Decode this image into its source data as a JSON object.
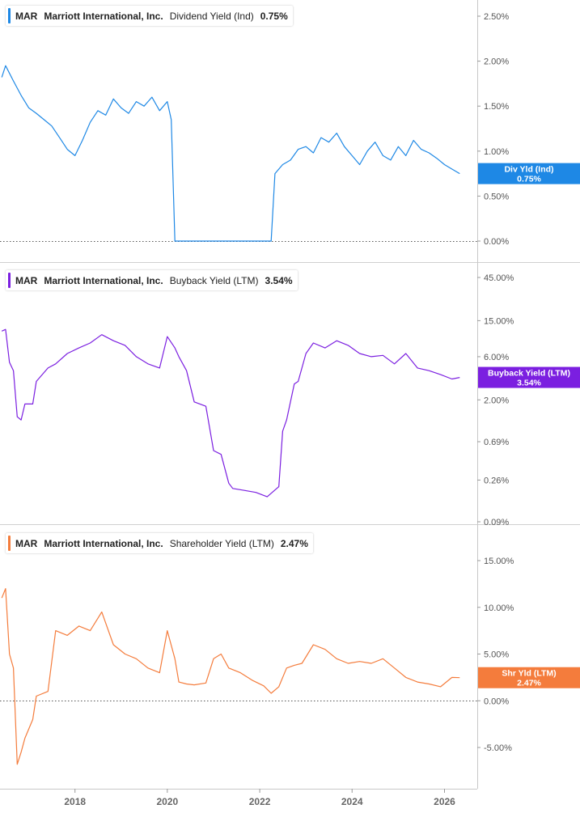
{
  "ticker": "MAR",
  "company": "Marriott International, Inc.",
  "x_ticks": [
    "2018",
    "2020",
    "2022",
    "2024",
    "2026"
  ],
  "chart_data": [
    {
      "type": "line",
      "metric": "Dividend Yield (Ind)",
      "current_value": "0.75%",
      "badge_label": "Div Yld (Ind)",
      "color": "#1e88e5",
      "scale": "linear",
      "ylim": [
        0,
        2.6
      ],
      "y_ticks": [
        {
          "v": 2.5,
          "t": "2.50%"
        },
        {
          "v": 2.0,
          "t": "2.00%"
        },
        {
          "v": 1.5,
          "t": "1.50%"
        },
        {
          "v": 1.0,
          "t": "1.00%"
        },
        {
          "v": 0.5,
          "t": "0.50%"
        },
        {
          "v": 0,
          "t": "0.00%"
        }
      ],
      "zero_line": 0,
      "x": [
        "2016-06",
        "2016-07",
        "2016-09",
        "2016-11",
        "2017-01",
        "2017-03",
        "2017-05",
        "2017-07",
        "2017-09",
        "2017-11",
        "2018-01",
        "2018-03",
        "2018-05",
        "2018-07",
        "2018-09",
        "2018-11",
        "2019-01",
        "2019-03",
        "2019-05",
        "2019-07",
        "2019-09",
        "2019-11",
        "2020-01",
        "2020-02",
        "2020-03",
        "2020-06",
        "2021-01",
        "2022-04",
        "2022-05",
        "2022-07",
        "2022-09",
        "2022-11",
        "2023-01",
        "2023-03",
        "2023-05",
        "2023-07",
        "2023-09",
        "2023-11",
        "2024-01",
        "2024-03",
        "2024-05",
        "2024-07",
        "2024-09",
        "2024-11",
        "2025-01",
        "2025-03",
        "2025-05",
        "2025-07",
        "2025-09",
        "2025-11",
        "2026-01",
        "2026-03",
        "2026-05"
      ],
      "y": [
        1.82,
        1.95,
        1.78,
        1.62,
        1.48,
        1.42,
        1.35,
        1.28,
        1.15,
        1.02,
        0.95,
        1.12,
        1.32,
        1.45,
        1.4,
        1.58,
        1.48,
        1.42,
        1.55,
        1.5,
        1.6,
        1.45,
        1.55,
        1.35,
        0,
        0,
        0,
        0,
        0.75,
        0.85,
        0.9,
        1.02,
        1.05,
        0.98,
        1.15,
        1.1,
        1.2,
        1.05,
        0.95,
        0.85,
        1.0,
        1.1,
        0.95,
        0.9,
        1.05,
        0.95,
        1.12,
        1.02,
        0.98,
        0.92,
        0.85,
        0.8,
        0.75
      ]
    },
    {
      "type": "line",
      "metric": "Buyback Yield (LTM)",
      "current_value": "3.54%",
      "badge_label": "Buyback Yield (LTM)",
      "color": "#7b1fe0",
      "scale": "log",
      "ylim": [
        0.085,
        55
      ],
      "y_ticks": [
        {
          "v": 45,
          "t": "45.00%"
        },
        {
          "v": 15,
          "t": "15.00%"
        },
        {
          "v": 6,
          "t": "6.00%"
        },
        {
          "v": 2,
          "t": "2.00%"
        },
        {
          "v": 0.69,
          "t": "0.69%"
        },
        {
          "v": 0.26,
          "t": "0.26%"
        },
        {
          "v": 0.09,
          "t": "0.09%"
        }
      ],
      "x": [
        "2016-06",
        "2016-07",
        "2016-08",
        "2016-09",
        "2016-10",
        "2016-11",
        "2016-12",
        "2017-02",
        "2017-03",
        "2017-06",
        "2017-08",
        "2017-11",
        "2018-02",
        "2018-05",
        "2018-08",
        "2018-11",
        "2019-02",
        "2019-05",
        "2019-08",
        "2019-11",
        "2020-01",
        "2020-03",
        "2020-04",
        "2020-06",
        "2020-08",
        "2020-11",
        "2021-01",
        "2021-03",
        "2021-05",
        "2021-06",
        "2021-09",
        "2021-12",
        "2022-03",
        "2022-06",
        "2022-07",
        "2022-08",
        "2022-10",
        "2022-11",
        "2023-01",
        "2023-03",
        "2023-06",
        "2023-09",
        "2023-12",
        "2024-03",
        "2024-06",
        "2024-09",
        "2024-12",
        "2025-03",
        "2025-06",
        "2025-09",
        "2025-12",
        "2026-03",
        "2026-05"
      ],
      "y": [
        11.5,
        12.0,
        5.2,
        4.2,
        1.3,
        1.2,
        1.8,
        1.8,
        3.2,
        4.5,
        5.0,
        6.5,
        7.5,
        8.5,
        10.5,
        9.0,
        8.0,
        6.0,
        5.0,
        4.5,
        10.0,
        7.5,
        6.0,
        4.2,
        1.9,
        1.7,
        0.55,
        0.5,
        0.24,
        0.21,
        0.2,
        0.19,
        0.17,
        0.22,
        0.9,
        1.2,
        3.0,
        3.2,
        6.5,
        8.5,
        7.5,
        9.0,
        8.0,
        6.5,
        6.0,
        6.2,
        5.0,
        6.5,
        4.5,
        4.2,
        3.8,
        3.4,
        3.54
      ]
    },
    {
      "type": "line",
      "metric": "Shareholder Yield (LTM)",
      "current_value": "2.47%",
      "badge_label": "Shr Yld (LTM)",
      "color": "#f47c3c",
      "scale": "linear",
      "ylim": [
        -9.5,
        16.5
      ],
      "y_ticks": [
        {
          "v": 15,
          "t": "15.00%"
        },
        {
          "v": 10,
          "t": "10.00%"
        },
        {
          "v": 5,
          "t": "5.00%"
        },
        {
          "v": 0,
          "t": "0.00%"
        },
        {
          "v": -5,
          "t": "-5.00%"
        }
      ],
      "zero_line": 0,
      "x": [
        "2016-06",
        "2016-07",
        "2016-08",
        "2016-09",
        "2016-10",
        "2016-11",
        "2016-12",
        "2017-02",
        "2017-03",
        "2017-06",
        "2017-08",
        "2017-11",
        "2018-02",
        "2018-05",
        "2018-08",
        "2018-11",
        "2019-02",
        "2019-05",
        "2019-08",
        "2019-11",
        "2020-01",
        "2020-03",
        "2020-04",
        "2020-06",
        "2020-08",
        "2020-11",
        "2021-01",
        "2021-03",
        "2021-05",
        "2021-08",
        "2021-11",
        "2022-02",
        "2022-04",
        "2022-06",
        "2022-08",
        "2022-10",
        "2022-12",
        "2023-03",
        "2023-06",
        "2023-09",
        "2023-12",
        "2024-03",
        "2024-06",
        "2024-09",
        "2024-12",
        "2025-03",
        "2025-06",
        "2025-09",
        "2025-12",
        "2026-03",
        "2026-05"
      ],
      "y": [
        11.0,
        12.0,
        5.0,
        3.5,
        -6.8,
        -5.5,
        -4.0,
        -2.0,
        0.5,
        1.0,
        7.5,
        7.0,
        8.0,
        7.5,
        9.5,
        6.0,
        5.0,
        4.5,
        3.5,
        3.0,
        7.5,
        4.5,
        2.0,
        1.8,
        1.7,
        1.9,
        4.5,
        5.0,
        3.5,
        3.0,
        2.2,
        1.6,
        0.8,
        1.5,
        3.5,
        3.8,
        4.0,
        6.0,
        5.5,
        4.5,
        4.0,
        4.2,
        4.0,
        4.5,
        3.5,
        2.5,
        2.0,
        1.8,
        1.5,
        2.5,
        2.47
      ]
    }
  ]
}
